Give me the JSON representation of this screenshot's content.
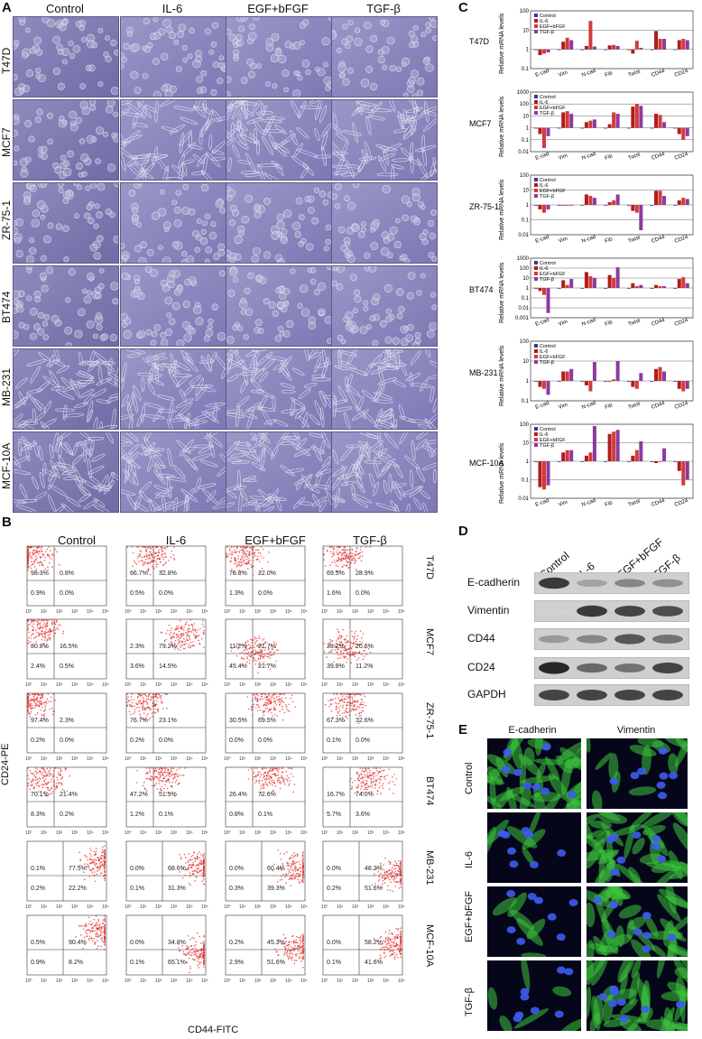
{
  "panel_letters": [
    "A",
    "B",
    "C",
    "D",
    "E"
  ],
  "conditions": [
    "Control",
    "IL-6",
    "EGF+bFGF",
    "TGF-β"
  ],
  "cell_lines": [
    "T47D",
    "MCF7",
    "ZR-75-1",
    "BT474",
    "MB-231",
    "MCF-10A"
  ],
  "panel_b": {
    "x_axis_label": "CD44-FITC",
    "y_axis_label": "CD24-PE",
    "tick_labels": [
      "10⁰",
      "10¹",
      "10²",
      "10³",
      "10⁴",
      "10⁵"
    ],
    "quadrants": [
      [
        [
          "98.3%",
          "0.8%",
          "0.9%",
          "0.0%"
        ],
        [
          "66.7%",
          "32.8%",
          "0.5%",
          "0.0%"
        ],
        [
          "76.8%",
          "22.0%",
          "1.3%",
          "0.0%"
        ],
        [
          "69.5%",
          "28.9%",
          "1.6%",
          "0.0%"
        ]
      ],
      [
        [
          "80.8%",
          "16.5%",
          "2.4%",
          "0.5%"
        ],
        [
          "2.3%",
          "79.2%",
          "3.6%",
          "14.5%"
        ],
        [
          "11.2%",
          "21.7%",
          "45.4%",
          "21.7%"
        ],
        [
          "28.2%",
          "20.6%",
          "39.8%",
          "11.2%"
        ]
      ],
      [
        [
          "97.4%",
          "2.3%",
          "0.2%",
          "0.0%"
        ],
        [
          "76.7%",
          "23.1%",
          "0.2%",
          "0.0%"
        ],
        [
          "30.5%",
          "69.5%",
          "0.0%",
          "0.0%"
        ],
        [
          "67.3%",
          "32.6%",
          "0.1%",
          "0.0%"
        ]
      ],
      [
        [
          "70.1%",
          "21.4%",
          "8.3%",
          "0.2%"
        ],
        [
          "47.2%",
          "51.5%",
          "1.2%",
          "0.1%"
        ],
        [
          "26.4%",
          "72.6%",
          "0.8%",
          "0.1%"
        ],
        [
          "16.7%",
          "74.0%",
          "5.7%",
          "3.6%"
        ]
      ],
      [
        [
          "0.1%",
          "77.5%",
          "0.2%",
          "22.2%"
        ],
        [
          "0.0%",
          "68.6%",
          "0.1%",
          "31.3%"
        ],
        [
          "0.0%",
          "60.4%",
          "0.3%",
          "39.3%"
        ],
        [
          "0.0%",
          "48.2%",
          "0.2%",
          "51.6%"
        ]
      ],
      [
        [
          "0.5%",
          "90.4%",
          "0.9%",
          "8.2%"
        ],
        [
          "0.0%",
          "34.8%",
          "0.1%",
          "65.1%"
        ],
        [
          "0.2%",
          "45.3%",
          "2.9%",
          "51.6%"
        ],
        [
          "0.0%",
          "58.2%",
          "0.1%",
          "41.6%"
        ]
      ]
    ]
  },
  "panel_c": {
    "ylabel": "Relative mRNA levels",
    "legend": [
      "Control",
      "IL-6",
      "EGF+bFGF",
      "TGF-β"
    ],
    "colors": [
      "#3a3a8c",
      "#b01c1c",
      "#d43a3a",
      "#8c3aa0"
    ],
    "genes": [
      "E-cad",
      "Vim",
      "N-cad",
      "Fib",
      "Twist",
      "CD44",
      "CD24"
    ]
  },
  "chart_data": [
    {
      "type": "bar",
      "title": "T47D",
      "ylabel": "Relative mRNA levels",
      "log_scale": true,
      "ylim": [
        0.1,
        100
      ],
      "y_ticks": [
        "0.1",
        "1",
        "10",
        "100"
      ],
      "categories": [
        "E-cad",
        "Vim",
        "N-cad",
        "Fib",
        "Twist",
        "CD44",
        "CD24"
      ],
      "series": [
        {
          "name": "Control",
          "values": [
            1,
            1,
            1,
            1,
            1,
            1,
            1
          ]
        },
        {
          "name": "IL-6",
          "values": [
            0.5,
            2.5,
            1.5,
            1.6,
            0.6,
            9,
            3
          ]
        },
        {
          "name": "EGF+bFGF",
          "values": [
            0.6,
            4,
            30,
            1.7,
            2.8,
            3.5,
            3.5
          ]
        },
        {
          "name": "TGF-β",
          "values": [
            0.7,
            3,
            1.4,
            1.5,
            1.2,
            3.5,
            3
          ]
        }
      ]
    },
    {
      "type": "bar",
      "title": "MCF7",
      "ylabel": "Relative mRNA levels",
      "log_scale": true,
      "ylim": [
        0.01,
        1000
      ],
      "y_ticks": [
        "0.01",
        "0.1",
        "1",
        "10",
        "100",
        "1000"
      ],
      "categories": [
        "E-cad",
        "Vim",
        "N-cad",
        "Fib",
        "Twist",
        "CD44",
        "CD24"
      ],
      "series": [
        {
          "name": "Control",
          "values": [
            1,
            1,
            1,
            1,
            1,
            1,
            1
          ]
        },
        {
          "name": "IL-6",
          "values": [
            0.3,
            20,
            3,
            2,
            60,
            15,
            0.3
          ]
        },
        {
          "name": "EGF+bFGF",
          "values": [
            0.02,
            25,
            4,
            20,
            100,
            12,
            0.1
          ]
        },
        {
          "name": "TGF-β",
          "values": [
            0.2,
            15,
            5,
            15,
            70,
            3,
            0.2
          ]
        }
      ]
    },
    {
      "type": "bar",
      "title": "ZR-75-1",
      "ylabel": "Relative mRNA levels",
      "log_scale": true,
      "ylim": [
        0.01,
        100
      ],
      "y_ticks": [
        "0.01",
        "0.1",
        "1",
        "10",
        "100"
      ],
      "categories": [
        "E-cad",
        "Vim",
        "N-cad",
        "Fib",
        "Twist",
        "CD44",
        "CD24"
      ],
      "series": [
        {
          "name": "Control",
          "values": [
            1,
            1,
            1,
            1,
            1,
            1,
            1
          ]
        },
        {
          "name": "IL-6",
          "values": [
            0.5,
            1,
            5,
            1.5,
            0.4,
            9,
            2
          ]
        },
        {
          "name": "EGF+bFGF",
          "values": [
            0.3,
            1,
            4,
            2,
            0.3,
            9,
            3
          ]
        },
        {
          "name": "TGF-β",
          "values": [
            0.5,
            1,
            3,
            5,
            0.02,
            4,
            2.5
          ]
        }
      ]
    },
    {
      "type": "bar",
      "title": "BT474",
      "ylabel": "Relative mRNA levels",
      "log_scale": true,
      "ylim": [
        0.001,
        1000
      ],
      "y_ticks": [
        "0.001",
        "0.01",
        "0.1",
        "1",
        "10",
        "100",
        "1000"
      ],
      "categories": [
        "E-cad",
        "Vim",
        "N-cad",
        "Fib",
        "Twist",
        "CD44",
        "CD24"
      ],
      "series": [
        {
          "name": "Control",
          "values": [
            1,
            1,
            1,
            1,
            1,
            1,
            1
          ]
        },
        {
          "name": "IL-6",
          "values": [
            0.5,
            6,
            40,
            20,
            3,
            2,
            8
          ]
        },
        {
          "name": "EGF+bFGF",
          "values": [
            0.2,
            2,
            15,
            10,
            1.5,
            1.5,
            12
          ]
        },
        {
          "name": "TGF-β",
          "values": [
            0.003,
            8,
            10,
            120,
            2,
            1.5,
            3
          ]
        }
      ]
    },
    {
      "type": "bar",
      "title": "MB-231",
      "ylabel": "Relative mRNA levels",
      "log_scale": true,
      "ylim": [
        0.1,
        100
      ],
      "y_ticks": [
        "0.1",
        "1",
        "10",
        "100"
      ],
      "categories": [
        "E-cad",
        "Vim",
        "N-cad",
        "Fib",
        "Twist",
        "CD44",
        "CD24"
      ],
      "series": [
        {
          "name": "Control",
          "values": [
            1,
            1,
            1,
            1,
            1,
            1,
            1
          ]
        },
        {
          "name": "IL-6",
          "values": [
            0.5,
            3,
            0.6,
            1,
            0.5,
            4,
            0.4
          ]
        },
        {
          "name": "EGF+bFGF",
          "values": [
            0.4,
            3,
            0.3,
            1.2,
            0.4,
            5,
            0.3
          ]
        },
        {
          "name": "TGF-β",
          "values": [
            0.2,
            4,
            9,
            10,
            2.5,
            3,
            0.4
          ]
        }
      ]
    },
    {
      "type": "bar",
      "title": "MCF-10A",
      "ylabel": "Relative mRNA levels",
      "log_scale": true,
      "ylim": [
        0.01,
        100
      ],
      "y_ticks": [
        "0.01",
        "0.1",
        "1",
        "10",
        "100"
      ],
      "categories": [
        "E-cad",
        "Vim",
        "N-cad",
        "Fib",
        "Twist",
        "CD44",
        "CD24"
      ],
      "series": [
        {
          "name": "Control",
          "values": [
            1,
            1,
            1,
            1,
            1,
            1,
            1
          ]
        },
        {
          "name": "IL-6",
          "values": [
            0.04,
            3,
            2,
            30,
            2,
            0.8,
            0.3
          ]
        },
        {
          "name": "EGF+bFGF",
          "values": [
            0.03,
            4,
            3,
            40,
            4,
            1,
            0.05
          ]
        },
        {
          "name": "TGF-β",
          "values": [
            0.05,
            4,
            80,
            50,
            12,
            5,
            0.1
          ]
        }
      ]
    }
  ],
  "panel_d": {
    "lanes": [
      "Control",
      "IL-6",
      "EGF+bFGF",
      "TGF-β"
    ],
    "bands": [
      {
        "name": "E-cadherin",
        "intensity": [
          0.8,
          0.25,
          0.4,
          0.35
        ]
      },
      {
        "name": "Vimentin",
        "intensity": [
          0.0,
          0.8,
          0.75,
          0.7
        ]
      },
      {
        "name": "CD44",
        "intensity": [
          0.3,
          0.4,
          0.65,
          0.5
        ]
      },
      {
        "name": "CD24",
        "intensity": [
          0.9,
          0.55,
          0.5,
          0.75
        ]
      },
      {
        "name": "GAPDH",
        "intensity": [
          0.75,
          0.75,
          0.75,
          0.75
        ]
      }
    ]
  },
  "panel_e": {
    "columns": [
      "E-cadherin",
      "Vimentin"
    ],
    "rows": [
      "Control",
      "IL-6",
      "EGF+bFGF",
      "TGF-β"
    ]
  }
}
